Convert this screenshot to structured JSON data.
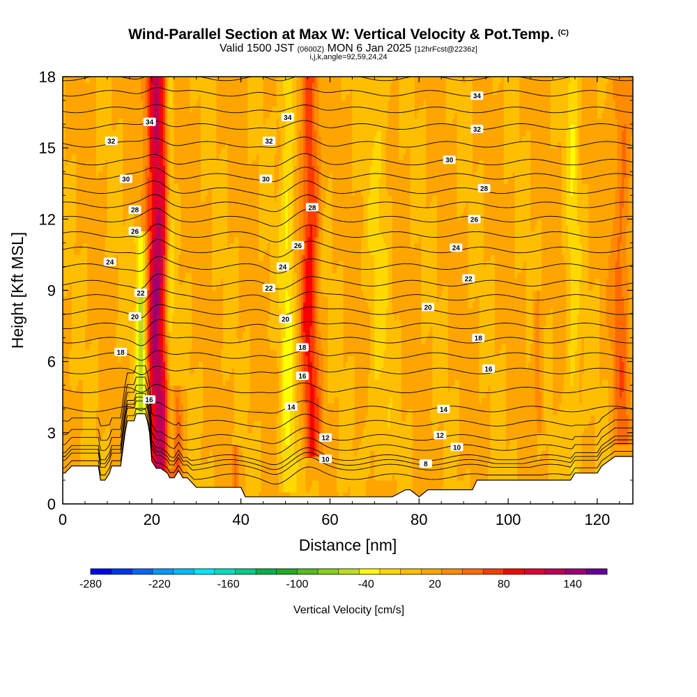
{
  "header": {
    "title": "Wind-Parallel Section at Max W: Vertical Velocity & Pot.Temp.",
    "title_units": "(C)",
    "valid_line_a": "Valid 1500 JST",
    "valid_line_b": "(0600Z)",
    "valid_line_c": "MON 6 Jan 2025",
    "valid_line_d": "[12hrFcst@2236z]",
    "index_line": "i,j,k,angle=92,59,24,24"
  },
  "chart_data": {
    "type": "heatmap",
    "title": "Wind-Parallel Section at Max W: Vertical Velocity & Pot.Temp.",
    "xlabel": "Distance [nm]",
    "ylabel": "Height [Kft MSL]",
    "xlim": [
      0,
      128
    ],
    "ylim": [
      0,
      18
    ],
    "x_ticks": [
      "0",
      "20",
      "40",
      "60",
      "80",
      "100",
      "120"
    ],
    "y_ticks": [
      "0",
      "3",
      "6",
      "9",
      "12",
      "15",
      "18"
    ],
    "x_tick_values": [
      0,
      20,
      40,
      60,
      80,
      100,
      120
    ],
    "y_tick_values": [
      0,
      3,
      6,
      9,
      12,
      15,
      18
    ],
    "colorbar": {
      "label": "Vertical Velocity [cm/s]",
      "min": -280,
      "max": 170,
      "tick_labels": [
        "-280",
        "-220",
        "-160",
        "-100",
        "-40",
        "20",
        "80",
        "140"
      ],
      "tick_values": [
        -280,
        -220,
        -160,
        -100,
        -40,
        20,
        80,
        140
      ],
      "colors": [
        "#0000ff",
        "#0033ff",
        "#0066ff",
        "#0099ff",
        "#00bbff",
        "#00e5ff",
        "#00e0c0",
        "#00cc88",
        "#00b050",
        "#22aa22",
        "#55bb22",
        "#88cc22",
        "#bbdd22",
        "#ffff00",
        "#ffd800",
        "#ffbf00",
        "#ffa500",
        "#ff8c00",
        "#ff6a00",
        "#ff3c00",
        "#ff0000",
        "#dd0033",
        "#bb0055",
        "#990077",
        "#660099"
      ]
    },
    "background_w": 10,
    "updraft_bands": [
      {
        "x_center": 21.2,
        "half_width": 2.3,
        "w_peak": 115,
        "y_from": 0.5,
        "y_to": 18
      },
      {
        "x_center": 55.5,
        "half_width": 2.0,
        "w_peak": 70,
        "y_from": 2.0,
        "y_to": 18
      },
      {
        "x_center": 38.6,
        "half_width": 0.8,
        "w_peak": 45,
        "y_from": 0.5,
        "y_to": 2.4
      },
      {
        "x_center": 25.5,
        "half_width": 1.2,
        "w_peak": 40,
        "y_from": 0.5,
        "y_to": 5.0
      },
      {
        "x_center": 125.5,
        "half_width": 2.0,
        "w_peak": 40,
        "y_from": 2.5,
        "y_to": 18
      },
      {
        "x_center": 106.8,
        "half_width": 1.0,
        "w_peak": 30,
        "y_from": 3.0,
        "y_to": 9.0
      }
    ],
    "downdraft_bands": [
      {
        "x_center": 17.7,
        "half_width": 1.3,
        "w_min": -75,
        "y_from": 3.0,
        "y_to": 11.5
      },
      {
        "x_center": 50.5,
        "half_width": 1.6,
        "w_min": -40,
        "y_from": 0.5,
        "y_to": 18
      },
      {
        "x_center": 24.2,
        "half_width": 0.9,
        "w_min": -35,
        "y_from": 1.5,
        "y_to": 18
      },
      {
        "x_center": 114.5,
        "half_width": 1.4,
        "w_min": -30,
        "y_from": 1.0,
        "y_to": 18
      },
      {
        "x_center": 71.0,
        "half_width": 2.5,
        "w_min": -20,
        "y_from": 1.0,
        "y_to": 18
      }
    ],
    "terrain": {
      "x": [
        0,
        0.5,
        2,
        8,
        8.5,
        9.5,
        10.5,
        11,
        13,
        14,
        14.5,
        15.5,
        16,
        16.5,
        17.5,
        18.5,
        19,
        19.5,
        20,
        21,
        22,
        23.5,
        24,
        25,
        26,
        27,
        28,
        30,
        31,
        40,
        41,
        44,
        46,
        48,
        50,
        52,
        54,
        56,
        60,
        62,
        66,
        68,
        70,
        73,
        74,
        77,
        78,
        80,
        82,
        85,
        88,
        92,
        93,
        96,
        100,
        110,
        114,
        115,
        120,
        121,
        124,
        128
      ],
      "y": [
        1.3,
        1.3,
        1.6,
        1.6,
        1.0,
        1.0,
        1.3,
        1.6,
        1.6,
        3.0,
        3.5,
        3.5,
        3.5,
        3.8,
        3.8,
        3.8,
        3.5,
        3.0,
        1.8,
        1.5,
        1.5,
        1.3,
        1.1,
        1.1,
        1.4,
        1.1,
        1.1,
        0.7,
        0.7,
        0.7,
        0.3,
        0.3,
        0.3,
        0.3,
        0.3,
        0.3,
        0.3,
        0.3,
        0.3,
        0.3,
        0.3,
        0.3,
        0.3,
        0.3,
        0.3,
        0.6,
        0.6,
        0.3,
        0.6,
        0.6,
        0.6,
        0.6,
        1.0,
        1.0,
        1.0,
        1.0,
        1.0,
        1.3,
        1.3,
        1.6,
        2.0,
        2.0
      ]
    },
    "contours": [
      {
        "level": 8,
        "height": 1.55
      },
      {
        "level": 10,
        "height": 1.95
      },
      {
        "level": 12,
        "height": 2.8
      },
      {
        "level": 14,
        "height": 4.0
      },
      {
        "level": 16,
        "height": 5.6
      },
      {
        "level": 18,
        "height": 6.9
      },
      {
        "level": 20,
        "height": 8.1
      },
      {
        "level": 22,
        "height": 9.3
      },
      {
        "level": 24,
        "height": 10.7
      },
      {
        "level": 26,
        "height": 12.0
      },
      {
        "level": 28,
        "height": 13.2
      },
      {
        "level": 30,
        "height": 14.4
      },
      {
        "level": 32,
        "height": 15.9
      },
      {
        "level": 34,
        "height": 17.3
      }
    ],
    "contour_labels": [
      {
        "text": "34",
        "x": 19.5,
        "y": 16.1
      },
      {
        "text": "34",
        "x": 50.5,
        "y": 16.3
      },
      {
        "text": "34",
        "x": 93.0,
        "y": 17.2
      },
      {
        "text": "32",
        "x": 10.9,
        "y": 15.3
      },
      {
        "text": "32",
        "x": 46.3,
        "y": 15.3
      },
      {
        "text": "32",
        "x": 93.0,
        "y": 15.8
      },
      {
        "text": "30",
        "x": 14.2,
        "y": 13.7
      },
      {
        "text": "30",
        "x": 45.6,
        "y": 13.7
      },
      {
        "text": "30",
        "x": 86.8,
        "y": 14.5
      },
      {
        "text": "28",
        "x": 16.2,
        "y": 12.4
      },
      {
        "text": "28",
        "x": 56.0,
        "y": 12.5
      },
      {
        "text": "28",
        "x": 94.6,
        "y": 13.3
      },
      {
        "text": "26",
        "x": 16.2,
        "y": 11.5
      },
      {
        "text": "26",
        "x": 52.8,
        "y": 10.9
      },
      {
        "text": "26",
        "x": 92.4,
        "y": 12.0
      },
      {
        "text": "24",
        "x": 10.6,
        "y": 10.2
      },
      {
        "text": "24",
        "x": 49.4,
        "y": 10.0
      },
      {
        "text": "24",
        "x": 88.3,
        "y": 10.8
      },
      {
        "text": "22",
        "x": 17.5,
        "y": 8.9
      },
      {
        "text": "22",
        "x": 46.3,
        "y": 9.1
      },
      {
        "text": "22",
        "x": 91.1,
        "y": 9.5
      },
      {
        "text": "20",
        "x": 16.2,
        "y": 7.9
      },
      {
        "text": "20",
        "x": 50.0,
        "y": 7.8
      },
      {
        "text": "20",
        "x": 82.0,
        "y": 8.3
      },
      {
        "text": "18",
        "x": 13.0,
        "y": 6.4
      },
      {
        "text": "18",
        "x": 53.8,
        "y": 6.6
      },
      {
        "text": "18",
        "x": 93.3,
        "y": 7.0
      },
      {
        "text": "16",
        "x": 19.4,
        "y": 4.4
      },
      {
        "text": "16",
        "x": 53.8,
        "y": 5.4
      },
      {
        "text": "16",
        "x": 95.6,
        "y": 5.7
      },
      {
        "text": "14",
        "x": 51.3,
        "y": 4.1
      },
      {
        "text": "14",
        "x": 85.5,
        "y": 4.0
      },
      {
        "text": "12",
        "x": 59.0,
        "y": 2.8
      },
      {
        "text": "12",
        "x": 84.7,
        "y": 2.9
      },
      {
        "text": "10",
        "x": 59.0,
        "y": 1.9
      },
      {
        "text": "10",
        "x": 88.5,
        "y": 2.4
      },
      {
        "text": "8",
        "x": 81.5,
        "y": 1.7
      }
    ]
  }
}
